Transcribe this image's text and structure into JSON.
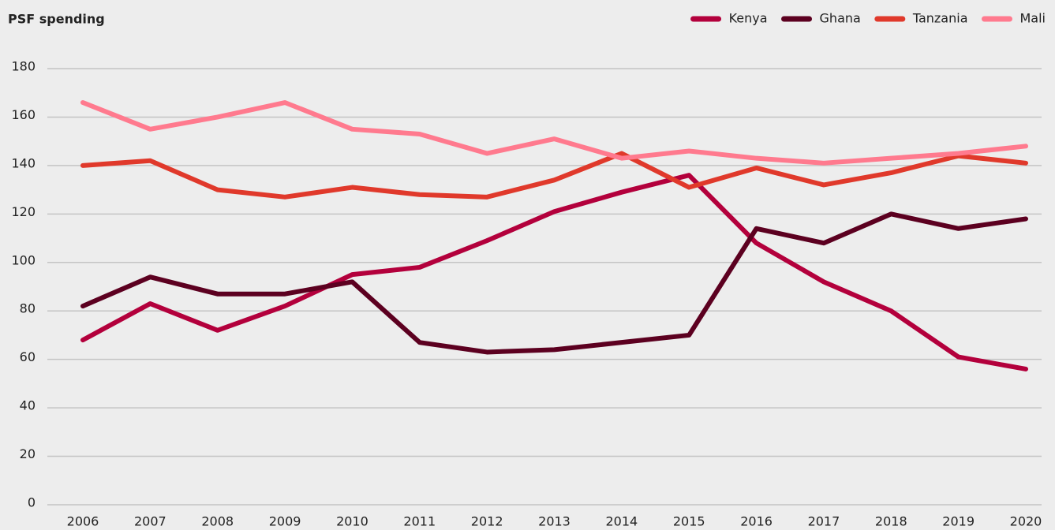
{
  "chart_data": {
    "type": "line",
    "title": "PSF spending",
    "categories": [
      "2006",
      "2007",
      "2008",
      "2009",
      "2010",
      "2011",
      "2012",
      "2013",
      "2014",
      "2015",
      "2016",
      "2017",
      "2018",
      "2019",
      "2020"
    ],
    "series": [
      {
        "name": "Kenya",
        "color": "#b3003c",
        "values": [
          68,
          83,
          72,
          82,
          95,
          98,
          109,
          121,
          129,
          136,
          108,
          92,
          80,
          61,
          56
        ]
      },
      {
        "name": "Ghana",
        "color": "#5c0020",
        "values": [
          82,
          94,
          87,
          87,
          92,
          67,
          63,
          64,
          67,
          70,
          114,
          108,
          120,
          114,
          118
        ]
      },
      {
        "name": "Tanzania",
        "color": "#e0392b",
        "values": [
          140,
          142,
          130,
          127,
          131,
          128,
          127,
          134,
          145,
          131,
          139,
          132,
          137,
          144,
          141
        ]
      },
      {
        "name": "Mali",
        "color": "#ff7a8e",
        "values": [
          166,
          155,
          160,
          166,
          155,
          153,
          145,
          151,
          143,
          146,
          143,
          141,
          143,
          145,
          148
        ]
      }
    ],
    "ylim": [
      0,
      180
    ],
    "yticks": [
      0,
      20,
      40,
      60,
      80,
      100,
      120,
      140,
      160,
      180
    ],
    "grid": true,
    "legend": "top-right"
  }
}
